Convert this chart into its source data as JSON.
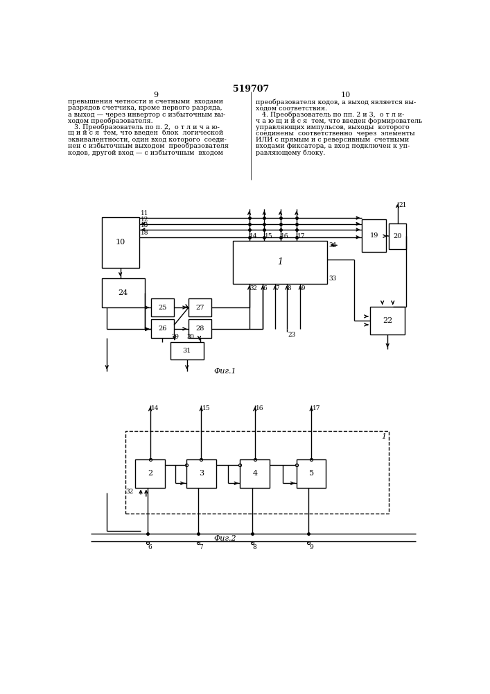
{
  "title": "519707",
  "page_left": "9",
  "page_right": "10",
  "fig1_label": "Фиг.1",
  "fig2_label": "Фиг.2",
  "bg_color": "#ffffff",
  "line_color": "#000000",
  "text_left": [
    "превышения четности и счетными  входами",
    "разрядов счетчика, кроме первого разряда,",
    "а выход — через инвертор с избыточным вы-",
    "ходом преобразователя.",
    "   3. Преобразователь по п. 2,  о т л и ч а ю-",
    "щ и й с я  тем, что введен  блок  логической",
    "эквивалентности, один вход которого  соеди-",
    "нен с избыточным выходом  преобразователя",
    "кодов, другой вход — с избыточным  входом"
  ],
  "text_right": [
    "преобразователя кодов, а выход является вы-",
    "ходом соответствия.",
    "   4. Преобразователь по пп. 2 и 3,  о т л и-",
    "ч а ю щ и й с я  тем, что введен формирователь",
    "управляющих импульсов, выходы  которого",
    "соединены  соответственно  через  элементы",
    "ИЛИ с прямым и с реверсивным  счетными",
    "входами фиксатора, а вход подключен к уп-",
    "равляющему блоку."
  ]
}
